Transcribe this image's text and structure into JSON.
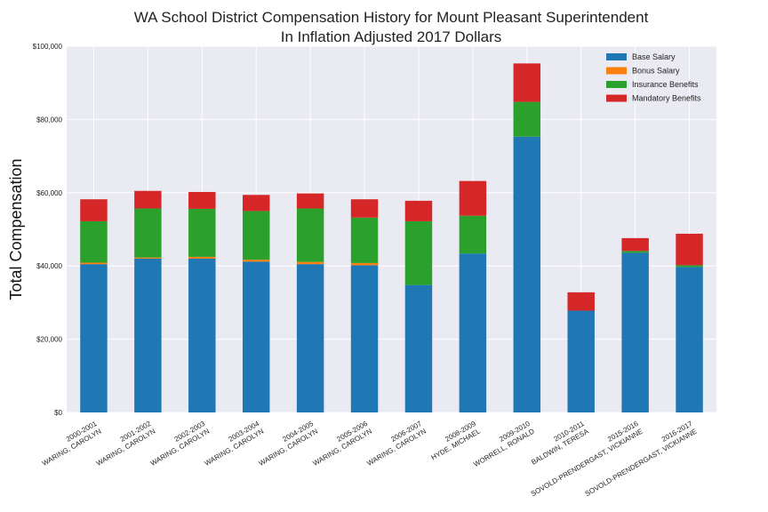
{
  "chart_data": {
    "type": "bar",
    "stacked": true,
    "title": [
      "WA School District Compensation History for Mount Pleasant Superintendent",
      "In Inflation Adjusted 2017 Dollars"
    ],
    "xlabel": "",
    "ylabel": "Total Compensation",
    "ylim": [
      0,
      100000
    ],
    "yticks": [
      0,
      20000,
      40000,
      60000,
      80000,
      100000
    ],
    "ytick_labels": [
      "$0",
      "$20,000",
      "$40,000",
      "$60,000",
      "$80,000",
      "$100,000"
    ],
    "grid": true,
    "legend_position": "top-right",
    "categories": [
      [
        "2000-2001",
        "WARING, CAROLYN"
      ],
      [
        "2001-2002",
        "WARING, CAROLYN"
      ],
      [
        "2002-2003",
        "WARING, CAROLYN"
      ],
      [
        "2003-2004",
        "WARING, CAROLYN"
      ],
      [
        "2004-2005",
        "WARING, CAROLYN"
      ],
      [
        "2005-2006",
        "WARING, CAROLYN"
      ],
      [
        "2006-2007",
        "WARING, CAROLYN"
      ],
      [
        "2008-2009",
        "HYDE, MICHAEL"
      ],
      [
        "2009-2010",
        "WORRELL, RONALD"
      ],
      [
        "2010-2011",
        "BALDWIN, TERESA"
      ],
      [
        "2015-2016",
        "SOVOLD-PRENDERGAST, VICKIANNE"
      ],
      [
        "2016-2017",
        "SOVOLD-PRENDERGAST, VICKIANNE"
      ]
    ],
    "series": [
      {
        "name": "Base Salary",
        "color": "#1f77b4",
        "values": [
          40500,
          42000,
          42000,
          41200,
          40500,
          40200,
          34800,
          43400,
          75300,
          27800,
          43600,
          39700
        ]
      },
      {
        "name": "Bonus Salary",
        "color": "#ff7f0e",
        "values": [
          400,
          300,
          500,
          500,
          600,
          600,
          0,
          0,
          0,
          0,
          0,
          0
        ]
      },
      {
        "name": "Insurance Benefits",
        "color": "#2ca02c",
        "values": [
          11300,
          13400,
          13100,
          13300,
          14600,
          12400,
          17400,
          10300,
          9500,
          0,
          500,
          500
        ]
      },
      {
        "name": "Mandatory Benefits",
        "color": "#d62728",
        "values": [
          6000,
          4800,
          4600,
          4400,
          4100,
          5000,
          5600,
          9500,
          10500,
          5000,
          3500,
          8600
        ]
      }
    ]
  }
}
